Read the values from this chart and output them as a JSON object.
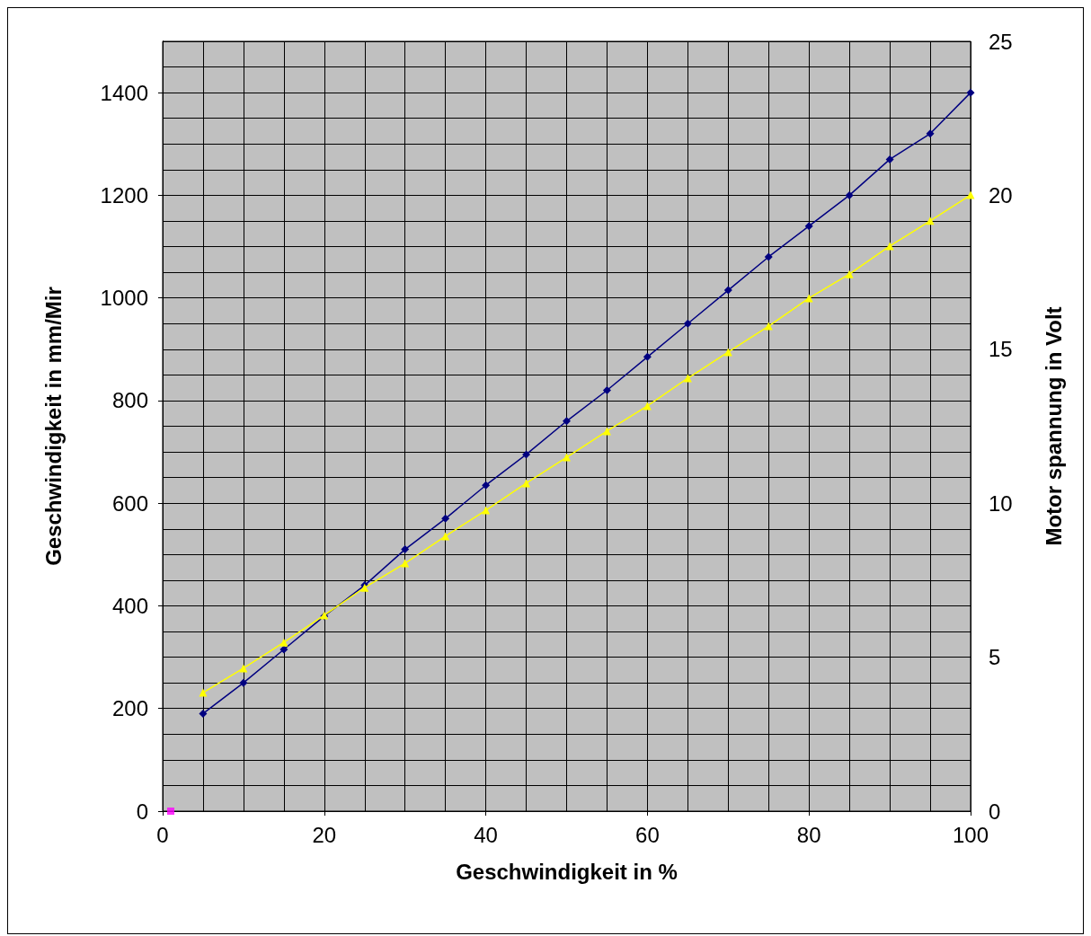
{
  "chart_data": {
    "type": "line",
    "xlabel": "Geschwindigkeit in %",
    "ylabel": "Geschwindigkeit in mm/Mir",
    "y2label": "Motor spannung in Volt",
    "x": [
      5,
      10,
      15,
      20,
      25,
      30,
      35,
      40,
      45,
      50,
      55,
      60,
      65,
      70,
      75,
      80,
      85,
      90,
      95,
      100
    ],
    "series": [
      {
        "color": "#000080",
        "marker": "diamond",
        "values": [
          190,
          250,
          315,
          380,
          440,
          510,
          570,
          635,
          695,
          760,
          820,
          885,
          950,
          1015,
          1080,
          1140,
          1200,
          1270,
          1320,
          1400
        ]
      },
      {
        "color": "#ffff00",
        "marker": "triangle",
        "axis": "y2",
        "values": [
          3.85,
          4.64,
          5.48,
          6.36,
          7.26,
          8.05,
          8.93,
          9.77,
          10.65,
          11.49,
          12.34,
          13.16,
          14.06,
          14.91,
          15.75,
          16.66,
          17.44,
          18.35,
          19.17,
          20.01
        ]
      },
      {
        "type": "scatter",
        "color": "#ff00ff",
        "marker": "square",
        "x": [
          1
        ],
        "values": [
          0
        ]
      }
    ],
    "xlim": [
      0,
      100
    ],
    "xticks": [
      0,
      20,
      40,
      60,
      80,
      100
    ],
    "ylim": [
      0,
      1500
    ],
    "yticks": [
      0,
      200,
      400,
      600,
      800,
      1000,
      1200,
      1400
    ],
    "y2lim": [
      0,
      25
    ],
    "y2ticks": [
      0,
      5,
      10,
      15,
      20,
      25
    ],
    "grid": true
  }
}
